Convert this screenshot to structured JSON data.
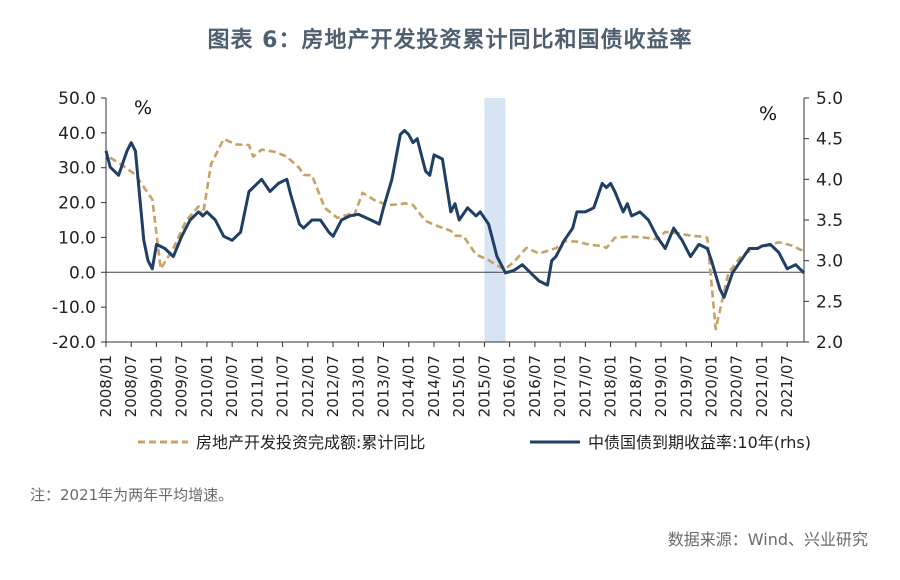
{
  "title": "图表 6：房地产开发投资累计同比和国债收益率",
  "note": "注：2021年为两年平均增速。",
  "source": "数据来源：Wind、兴业研究",
  "chart_data": {
    "type": "line",
    "x_ticks": [
      "2008/01",
      "2008/07",
      "2009/01",
      "2009/07",
      "2010/01",
      "2010/07",
      "2011/01",
      "2011/07",
      "2012/01",
      "2012/07",
      "2013/01",
      "2013/07",
      "2014/01",
      "2014/07",
      "2015/01",
      "2015/07",
      "2016/01",
      "2016/07",
      "2017/01",
      "2017/07",
      "2018/01",
      "2018/07",
      "2019/01",
      "2019/07",
      "2020/01",
      "2020/07",
      "2021/01",
      "2021/07"
    ],
    "x_range": [
      "2008/01",
      "2021/11"
    ],
    "left_axis": {
      "unit": "%",
      "ylim": [
        -20,
        50
      ],
      "ticks": [
        "50.0",
        "40.0",
        "30.0",
        "20.0",
        "10.0",
        "0.0",
        "-10.0",
        "-20.0"
      ]
    },
    "right_axis": {
      "unit": "%",
      "ylim": [
        2.0,
        5.0
      ],
      "ticks": [
        "5.0",
        "4.5",
        "4.0",
        "3.5",
        "3.0",
        "2.5",
        "2.0"
      ]
    },
    "shaded_period": [
      "2015/07",
      "2015/12"
    ],
    "series": [
      {
        "name": "房地产开发投资完成额:累计同比",
        "axis": "left",
        "color": "#c8a165",
        "dash": true,
        "points": [
          [
            "2008/02",
            32.9
          ],
          [
            "2008/05",
            30.6
          ],
          [
            "2008/08",
            28.0
          ],
          [
            "2008/11",
            22.7
          ],
          [
            "2008/12",
            20.9
          ],
          [
            "2009/02",
            1.0
          ],
          [
            "2009/05",
            6.8
          ],
          [
            "2009/08",
            14.7
          ],
          [
            "2009/11",
            18.9
          ],
          [
            "2009/12",
            16.1
          ],
          [
            "2010/02",
            31.1
          ],
          [
            "2010/05",
            38.2
          ],
          [
            "2010/08",
            36.7
          ],
          [
            "2010/11",
            36.5
          ],
          [
            "2010/12",
            33.2
          ],
          [
            "2011/02",
            35.2
          ],
          [
            "2011/05",
            34.6
          ],
          [
            "2011/08",
            33.2
          ],
          [
            "2011/11",
            29.9
          ],
          [
            "2011/12",
            27.9
          ],
          [
            "2012/02",
            27.8
          ],
          [
            "2012/05",
            18.5
          ],
          [
            "2012/08",
            15.6
          ],
          [
            "2012/11",
            16.7
          ],
          [
            "2012/12",
            16.2
          ],
          [
            "2013/02",
            22.8
          ],
          [
            "2013/05",
            20.6
          ],
          [
            "2013/08",
            19.3
          ],
          [
            "2013/11",
            19.5
          ],
          [
            "2013/12",
            19.8
          ],
          [
            "2014/02",
            19.3
          ],
          [
            "2014/05",
            14.7
          ],
          [
            "2014/08",
            13.2
          ],
          [
            "2014/11",
            11.9
          ],
          [
            "2014/12",
            10.5
          ],
          [
            "2015/02",
            10.4
          ],
          [
            "2015/05",
            5.1
          ],
          [
            "2015/08",
            3.5
          ],
          [
            "2015/11",
            1.3
          ],
          [
            "2015/12",
            1.0
          ],
          [
            "2016/02",
            3.0
          ],
          [
            "2016/05",
            7.0
          ],
          [
            "2016/08",
            5.4
          ],
          [
            "2016/11",
            6.5
          ],
          [
            "2016/12",
            6.9
          ],
          [
            "2017/02",
            8.9
          ],
          [
            "2017/05",
            8.8
          ],
          [
            "2017/08",
            7.9
          ],
          [
            "2017/11",
            7.5
          ],
          [
            "2017/12",
            7.0
          ],
          [
            "2018/02",
            9.9
          ],
          [
            "2018/05",
            10.2
          ],
          [
            "2018/08",
            10.1
          ],
          [
            "2018/11",
            9.7
          ],
          [
            "2018/12",
            9.5
          ],
          [
            "2019/02",
            11.6
          ],
          [
            "2019/05",
            11.2
          ],
          [
            "2019/08",
            10.5
          ],
          [
            "2019/11",
            10.2
          ],
          [
            "2019/12",
            9.9
          ],
          [
            "2020/02",
            -16.3
          ],
          [
            "2020/05",
            -0.3
          ],
          [
            "2020/08",
            4.6
          ],
          [
            "2020/11",
            6.8
          ],
          [
            "2020/12",
            7.0
          ],
          [
            "2021/02",
            7.6
          ],
          [
            "2021/05",
            8.6
          ],
          [
            "2021/08",
            7.7
          ],
          [
            "2021/11",
            6.0
          ]
        ]
      },
      {
        "name": "中债国债到期收益率:10年(rhs)",
        "axis": "right",
        "color": "#1f3f67",
        "dash": false,
        "points": [
          [
            "2008/01",
            4.35
          ],
          [
            "2008/02",
            4.15
          ],
          [
            "2008/04",
            4.05
          ],
          [
            "2008/06",
            4.35
          ],
          [
            "2008/07",
            4.45
          ],
          [
            "2008/08",
            4.35
          ],
          [
            "2008/09",
            3.8
          ],
          [
            "2008/10",
            3.25
          ],
          [
            "2008/11",
            3.0
          ],
          [
            "2008/12",
            2.9
          ],
          [
            "2009/01",
            3.2
          ],
          [
            "2009/03",
            3.15
          ],
          [
            "2009/05",
            3.05
          ],
          [
            "2009/07",
            3.3
          ],
          [
            "2009/09",
            3.5
          ],
          [
            "2009/11",
            3.6
          ],
          [
            "2009/12",
            3.55
          ],
          [
            "2010/01",
            3.6
          ],
          [
            "2010/03",
            3.5
          ],
          [
            "2010/05",
            3.3
          ],
          [
            "2010/07",
            3.25
          ],
          [
            "2010/09",
            3.35
          ],
          [
            "2010/11",
            3.85
          ],
          [
            "2010/12",
            3.9
          ],
          [
            "2011/02",
            4.0
          ],
          [
            "2011/04",
            3.85
          ],
          [
            "2011/06",
            3.95
          ],
          [
            "2011/08",
            4.0
          ],
          [
            "2011/09",
            3.8
          ],
          [
            "2011/11",
            3.45
          ],
          [
            "2011/12",
            3.4
          ],
          [
            "2012/02",
            3.5
          ],
          [
            "2012/04",
            3.5
          ],
          [
            "2012/06",
            3.35
          ],
          [
            "2012/07",
            3.3
          ],
          [
            "2012/09",
            3.5
          ],
          [
            "2012/11",
            3.55
          ],
          [
            "2013/01",
            3.57
          ],
          [
            "2013/04",
            3.5
          ],
          [
            "2013/06",
            3.45
          ],
          [
            "2013/07",
            3.65
          ],
          [
            "2013/09",
            4.0
          ],
          [
            "2013/11",
            4.55
          ],
          [
            "2013/12",
            4.6
          ],
          [
            "2014/01",
            4.55
          ],
          [
            "2014/02",
            4.45
          ],
          [
            "2014/03",
            4.5
          ],
          [
            "2014/05",
            4.1
          ],
          [
            "2014/06",
            4.05
          ],
          [
            "2014/07",
            4.3
          ],
          [
            "2014/09",
            4.25
          ],
          [
            "2014/11",
            3.6
          ],
          [
            "2014/12",
            3.7
          ],
          [
            "2015/01",
            3.5
          ],
          [
            "2015/03",
            3.65
          ],
          [
            "2015/05",
            3.55
          ],
          [
            "2015/06",
            3.6
          ],
          [
            "2015/08",
            3.45
          ],
          [
            "2015/09",
            3.25
          ],
          [
            "2015/10",
            3.05
          ],
          [
            "2015/12",
            2.85
          ],
          [
            "2016/02",
            2.88
          ],
          [
            "2016/04",
            2.95
          ],
          [
            "2016/06",
            2.85
          ],
          [
            "2016/08",
            2.75
          ],
          [
            "2016/10",
            2.7
          ],
          [
            "2016/11",
            3.0
          ],
          [
            "2016/12",
            3.05
          ],
          [
            "2017/02",
            3.25
          ],
          [
            "2017/04",
            3.4
          ],
          [
            "2017/05",
            3.6
          ],
          [
            "2017/07",
            3.6
          ],
          [
            "2017/09",
            3.65
          ],
          [
            "2017/11",
            3.95
          ],
          [
            "2017/12",
            3.9
          ],
          [
            "2018/01",
            3.95
          ],
          [
            "2018/02",
            3.85
          ],
          [
            "2018/04",
            3.6
          ],
          [
            "2018/05",
            3.7
          ],
          [
            "2018/06",
            3.55
          ],
          [
            "2018/08",
            3.6
          ],
          [
            "2018/10",
            3.5
          ],
          [
            "2018/12",
            3.3
          ],
          [
            "2019/02",
            3.15
          ],
          [
            "2019/04",
            3.4
          ],
          [
            "2019/06",
            3.25
          ],
          [
            "2019/08",
            3.05
          ],
          [
            "2019/10",
            3.2
          ],
          [
            "2019/12",
            3.15
          ],
          [
            "2020/01",
            3.0
          ],
          [
            "2020/03",
            2.65
          ],
          [
            "2020/04",
            2.55
          ],
          [
            "2020/06",
            2.85
          ],
          [
            "2020/08",
            3.0
          ],
          [
            "2020/10",
            3.15
          ],
          [
            "2020/12",
            3.15
          ],
          [
            "2021/01",
            3.18
          ],
          [
            "2021/03",
            3.2
          ],
          [
            "2021/05",
            3.1
          ],
          [
            "2021/07",
            2.9
          ],
          [
            "2021/09",
            2.95
          ],
          [
            "2021/11",
            2.85
          ]
        ]
      }
    ]
  }
}
